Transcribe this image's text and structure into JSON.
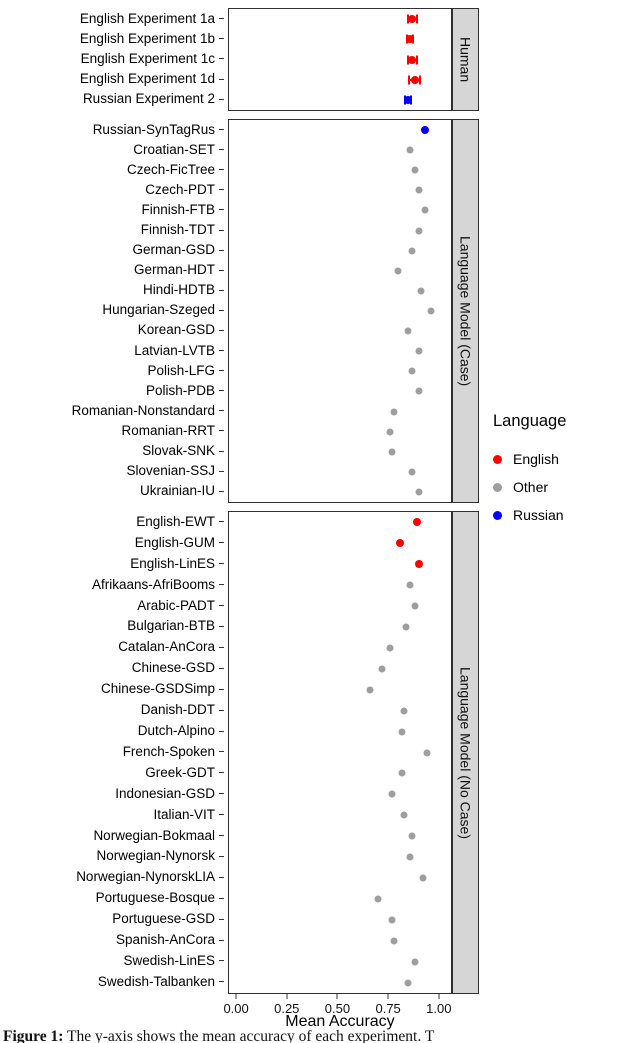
{
  "figure": {
    "axis": {
      "label": "Mean Accuracy",
      "ticks": [
        "0.00",
        "0.25",
        "0.50",
        "0.75",
        "1.00"
      ],
      "tick_values": [
        0,
        0.25,
        0.5,
        0.75,
        1.0
      ],
      "domain": [
        -0.035,
        1.06
      ]
    },
    "legend": {
      "title": "Language",
      "items": [
        {
          "label": "English",
          "color": "#ff0000"
        },
        {
          "label": "Other",
          "color": "#9e9e9e"
        },
        {
          "label": "Russian",
          "color": "#0000ff"
        }
      ]
    },
    "colors": {
      "groups": {
        "English": "#ff0000",
        "Other": "#9e9e9e",
        "Russian": "#0000ff"
      },
      "strip_bg": "#d6d6d6",
      "panel_border": "#2f2f2f"
    },
    "caption": {
      "prefix": "Figure 1:",
      "text": "The y-axis shows the mean accuracy of each experiment. T"
    }
  },
  "chart_data": [
    {
      "type": "scatter",
      "facet": "Human",
      "xlabel": "Mean Accuracy",
      "xlim": [
        0,
        1
      ],
      "points": [
        {
          "label": "English Experiment 1a",
          "value": 0.87,
          "error": 0.02,
          "group": "English"
        },
        {
          "label": "English Experiment 1b",
          "value": 0.86,
          "error": 0.015,
          "group": "English"
        },
        {
          "label": "English Experiment 1c",
          "value": 0.87,
          "error": 0.02,
          "group": "English"
        },
        {
          "label": "English Experiment 1d",
          "value": 0.88,
          "error": 0.025,
          "group": "English"
        },
        {
          "label": "Russian Experiment 2",
          "value": 0.85,
          "error": 0.015,
          "group": "Russian"
        }
      ]
    },
    {
      "type": "scatter",
      "facet": "Language Model (Case)",
      "xlabel": "Mean Accuracy",
      "xlim": [
        0,
        1
      ],
      "points": [
        {
          "label": "Russian-SynTagRus",
          "value": 0.93,
          "group": "Russian"
        },
        {
          "label": "Croatian-SET",
          "value": 0.86,
          "group": "Other"
        },
        {
          "label": "Czech-FicTree",
          "value": 0.88,
          "group": "Other"
        },
        {
          "label": "Czech-PDT",
          "value": 0.9,
          "group": "Other"
        },
        {
          "label": "Finnish-FTB",
          "value": 0.93,
          "group": "Other"
        },
        {
          "label": "Finnish-TDT",
          "value": 0.9,
          "group": "Other"
        },
        {
          "label": "German-GSD",
          "value": 0.87,
          "group": "Other"
        },
        {
          "label": "German-HDT",
          "value": 0.8,
          "group": "Other"
        },
        {
          "label": "Hindi-HDTB",
          "value": 0.91,
          "group": "Other"
        },
        {
          "label": "Hungarian-Szeged",
          "value": 0.96,
          "group": "Other"
        },
        {
          "label": "Korean-GSD",
          "value": 0.85,
          "group": "Other"
        },
        {
          "label": "Latvian-LVTB",
          "value": 0.9,
          "group": "Other"
        },
        {
          "label": "Polish-LFG",
          "value": 0.87,
          "group": "Other"
        },
        {
          "label": "Polish-PDB",
          "value": 0.9,
          "group": "Other"
        },
        {
          "label": "Romanian-Nonstandard",
          "value": 0.78,
          "group": "Other"
        },
        {
          "label": "Romanian-RRT",
          "value": 0.76,
          "group": "Other"
        },
        {
          "label": "Slovak-SNK",
          "value": 0.77,
          "group": "Other"
        },
        {
          "label": "Slovenian-SSJ",
          "value": 0.87,
          "group": "Other"
        },
        {
          "label": "Ukrainian-IU",
          "value": 0.9,
          "group": "Other"
        }
      ]
    },
    {
      "type": "scatter",
      "facet": "Language Model (No Case)",
      "xlabel": "Mean Accuracy",
      "xlim": [
        0,
        1
      ],
      "points": [
        {
          "label": "English-EWT",
          "value": 0.89,
          "group": "English"
        },
        {
          "label": "English-GUM",
          "value": 0.81,
          "group": "English"
        },
        {
          "label": "English-LinES",
          "value": 0.9,
          "group": "English"
        },
        {
          "label": "Afrikaans-AfriBooms",
          "value": 0.86,
          "group": "Other"
        },
        {
          "label": "Arabic-PADT",
          "value": 0.88,
          "group": "Other"
        },
        {
          "label": "Bulgarian-BTB",
          "value": 0.84,
          "group": "Other"
        },
        {
          "label": "Catalan-AnCora",
          "value": 0.76,
          "group": "Other"
        },
        {
          "label": "Chinese-GSD",
          "value": 0.72,
          "group": "Other"
        },
        {
          "label": "Chinese-GSDSimp",
          "value": 0.66,
          "group": "Other"
        },
        {
          "label": "Danish-DDT",
          "value": 0.83,
          "group": "Other"
        },
        {
          "label": "Dutch-Alpino",
          "value": 0.82,
          "group": "Other"
        },
        {
          "label": "French-Spoken",
          "value": 0.94,
          "group": "Other"
        },
        {
          "label": "Greek-GDT",
          "value": 0.82,
          "group": "Other"
        },
        {
          "label": "Indonesian-GSD",
          "value": 0.77,
          "group": "Other"
        },
        {
          "label": "Italian-VIT",
          "value": 0.83,
          "group": "Other"
        },
        {
          "label": "Norwegian-Bokmaal",
          "value": 0.87,
          "group": "Other"
        },
        {
          "label": "Norwegian-Nynorsk",
          "value": 0.86,
          "group": "Other"
        },
        {
          "label": "Norwegian-NynorskLIA",
          "value": 0.92,
          "group": "Other"
        },
        {
          "label": "Portuguese-Bosque",
          "value": 0.7,
          "group": "Other"
        },
        {
          "label": "Portuguese-GSD",
          "value": 0.77,
          "group": "Other"
        },
        {
          "label": "Spanish-AnCora",
          "value": 0.78,
          "group": "Other"
        },
        {
          "label": "Swedish-LinES",
          "value": 0.88,
          "group": "Other"
        },
        {
          "label": "Swedish-Talbanken",
          "value": 0.85,
          "group": "Other"
        }
      ]
    }
  ]
}
